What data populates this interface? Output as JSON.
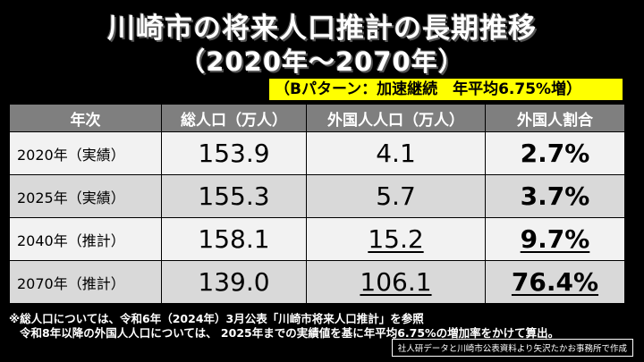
{
  "title": {
    "line1": "川崎市の将来人口推計の長期推移",
    "line2": "（2020年～2070年）"
  },
  "scenario_label": "（Bパターン：加速継続　年平均6.75%増）",
  "table": {
    "headers": [
      "年次",
      "総人口（万人）",
      "外国人人口（万人）",
      "外国人割合"
    ],
    "rows": [
      {
        "year": "2020年（実績）",
        "total": "153.9",
        "foreign": "4.1",
        "ratio": "2.7%"
      },
      {
        "year": "2025年（実績）",
        "total": "155.3",
        "foreign": "5.7",
        "ratio": "3.7%"
      },
      {
        "year": "2040年（推計）",
        "total": "158.1",
        "foreign": "15.2",
        "ratio": "9.7%"
      },
      {
        "year": "2070年（推計）",
        "total": "139.0",
        "foreign": "106.1",
        "ratio": "76.4%"
      }
    ]
  },
  "notes": {
    "line1": "※総人口については、令和6年（2024年）3月公表「川崎市将来人口推計」を参照",
    "line2": "令和8年以降の外国人人口については、 2025年までの実績値を基に年平均6.75%の増加率をかけて算出。"
  },
  "source": "社人研データと川崎市公表資料より矢沢たかお事務所で作成",
  "colors": {
    "background": "#000000",
    "header_bg": "#7f7f7f",
    "row_light": "#f2f2f2",
    "row_alt": "#d9d9d9",
    "highlight": "#ffff00"
  }
}
